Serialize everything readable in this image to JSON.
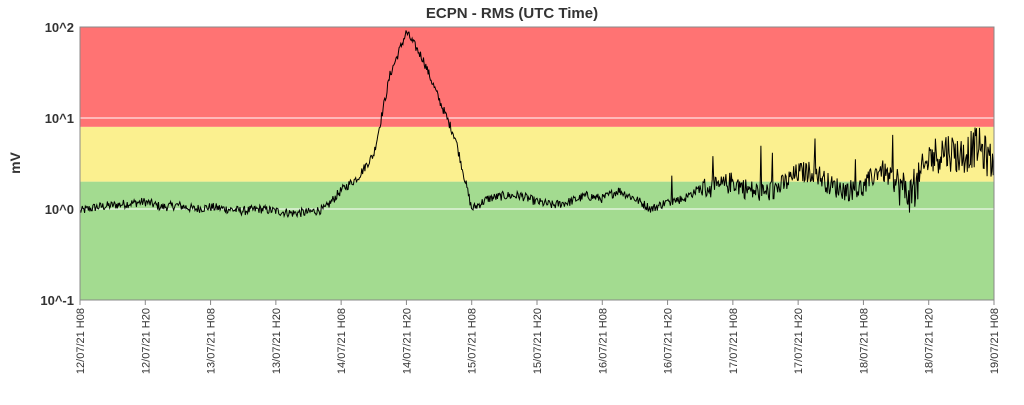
{
  "chart_data": {
    "type": "line",
    "title": "ECPN - RMS (UTC Time)",
    "xlabel": "",
    "ylabel": "mV",
    "y_scale": "log",
    "ylim": [
      0.1,
      100
    ],
    "y_ticks": [
      {
        "value": 100,
        "label": "10^2"
      },
      {
        "value": 10,
        "label": "10^1"
      },
      {
        "value": 1,
        "label": "10^0"
      },
      {
        "value": 0.1,
        "label": "10^-1"
      }
    ],
    "x_tick_labels": [
      "12/07/21 H08",
      "12/07/21 H20",
      "13/07/21 H08",
      "13/07/21 H20",
      "14/07/21 H08",
      "14/07/21 H20",
      "15/07/21 H08",
      "15/07/21 H20",
      "16/07/21 H08",
      "16/07/21 H20",
      "17/07/21 H08",
      "17/07/21 H20",
      "18/07/21 H08",
      "18/07/21 H20",
      "19/07/21 H08"
    ],
    "bands": [
      {
        "name": "green",
        "from": 0.1,
        "to": 2.0,
        "color": "#a3db90"
      },
      {
        "name": "yellow",
        "from": 2.0,
        "to": 8.0,
        "color": "#fbf08f"
      },
      {
        "name": "red",
        "from": 8.0,
        "to": 100,
        "color": "#ff7373"
      }
    ],
    "grid": "horizontal at decades",
    "series": [
      {
        "color": "#000000",
        "x": [
          0,
          0.25,
          0.5,
          0.75,
          1,
          1.25,
          1.5,
          1.75,
          2,
          2.25,
          2.5,
          2.75,
          3,
          3.25,
          3.5,
          3.75,
          4,
          4.25,
          4.5,
          4.75,
          5,
          5.25,
          5.5,
          5.75,
          6,
          6.25,
          6.5,
          6.75,
          7,
          7.25,
          7.5,
          7.75,
          8,
          8.25,
          8.5,
          8.75,
          9,
          9.25,
          9.5,
          9.75,
          10,
          10.25,
          10.5,
          10.75,
          11,
          11.25,
          11.5,
          11.75,
          12,
          12.25,
          12.5,
          12.75,
          13,
          13.25,
          13.5,
          13.75,
          14
        ],
        "values": [
          0.95,
          1.05,
          1.1,
          1.15,
          1.2,
          1.05,
          1.1,
          1.0,
          1.05,
          1.0,
          0.95,
          1.0,
          0.95,
          0.9,
          0.92,
          1.0,
          1.6,
          2.2,
          4.0,
          30,
          88,
          45,
          16,
          6.0,
          1.0,
          1.3,
          1.4,
          1.4,
          1.2,
          1.1,
          1.2,
          1.4,
          1.3,
          1.6,
          1.3,
          1.0,
          1.2,
          1.3,
          1.7,
          1.7,
          2.0,
          1.6,
          1.5,
          1.8,
          2.5,
          2.6,
          1.8,
          1.6,
          1.7,
          2.8,
          1.9,
          1.4,
          3.5,
          4.5,
          3.8,
          5.0,
          3.0
        ]
      }
    ]
  }
}
